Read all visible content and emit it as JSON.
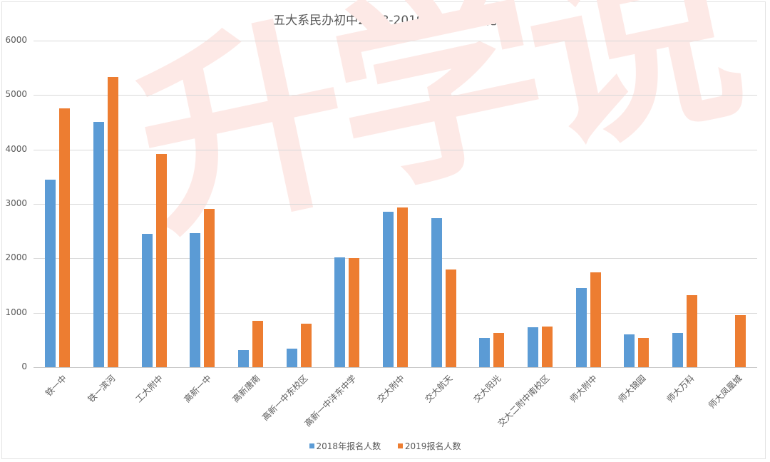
{
  "watermark": "升学说",
  "colors": {
    "series_2018": "#5b9bd5",
    "series_2019": "#ed7d31"
  },
  "chart_data": {
    "type": "bar",
    "title": "五大系民办初中2018-2019报名人数变化",
    "xlabel": "",
    "ylabel": "",
    "ylim": [
      0,
      6000
    ],
    "yticks": [
      0,
      1000,
      2000,
      3000,
      4000,
      5000,
      6000
    ],
    "grid": true,
    "legend_position": "bottom",
    "categories": [
      "铁一中",
      "铁一滨河",
      "工大附中",
      "高新一中",
      "高新唐南",
      "高新一中东校区",
      "高新一中沣东中学",
      "交大附中",
      "交大航天",
      "交大阳光",
      "交大二附中南校区",
      "师大附中",
      "师大锦园",
      "师大万科",
      "师大凤凰城"
    ],
    "series": [
      {
        "name": "2018年报名人数",
        "color": "#5b9bd5",
        "values": [
          3450,
          4510,
          2450,
          2460,
          315,
          340,
          2020,
          2850,
          2740,
          540,
          730,
          1450,
          605,
          635,
          0
        ]
      },
      {
        "name": "2019报名人数",
        "color": "#ed7d31",
        "values": [
          4750,
          5330,
          3920,
          2910,
          850,
          800,
          2005,
          2940,
          1790,
          635,
          750,
          1745,
          535,
          1320,
          955
        ]
      }
    ]
  }
}
